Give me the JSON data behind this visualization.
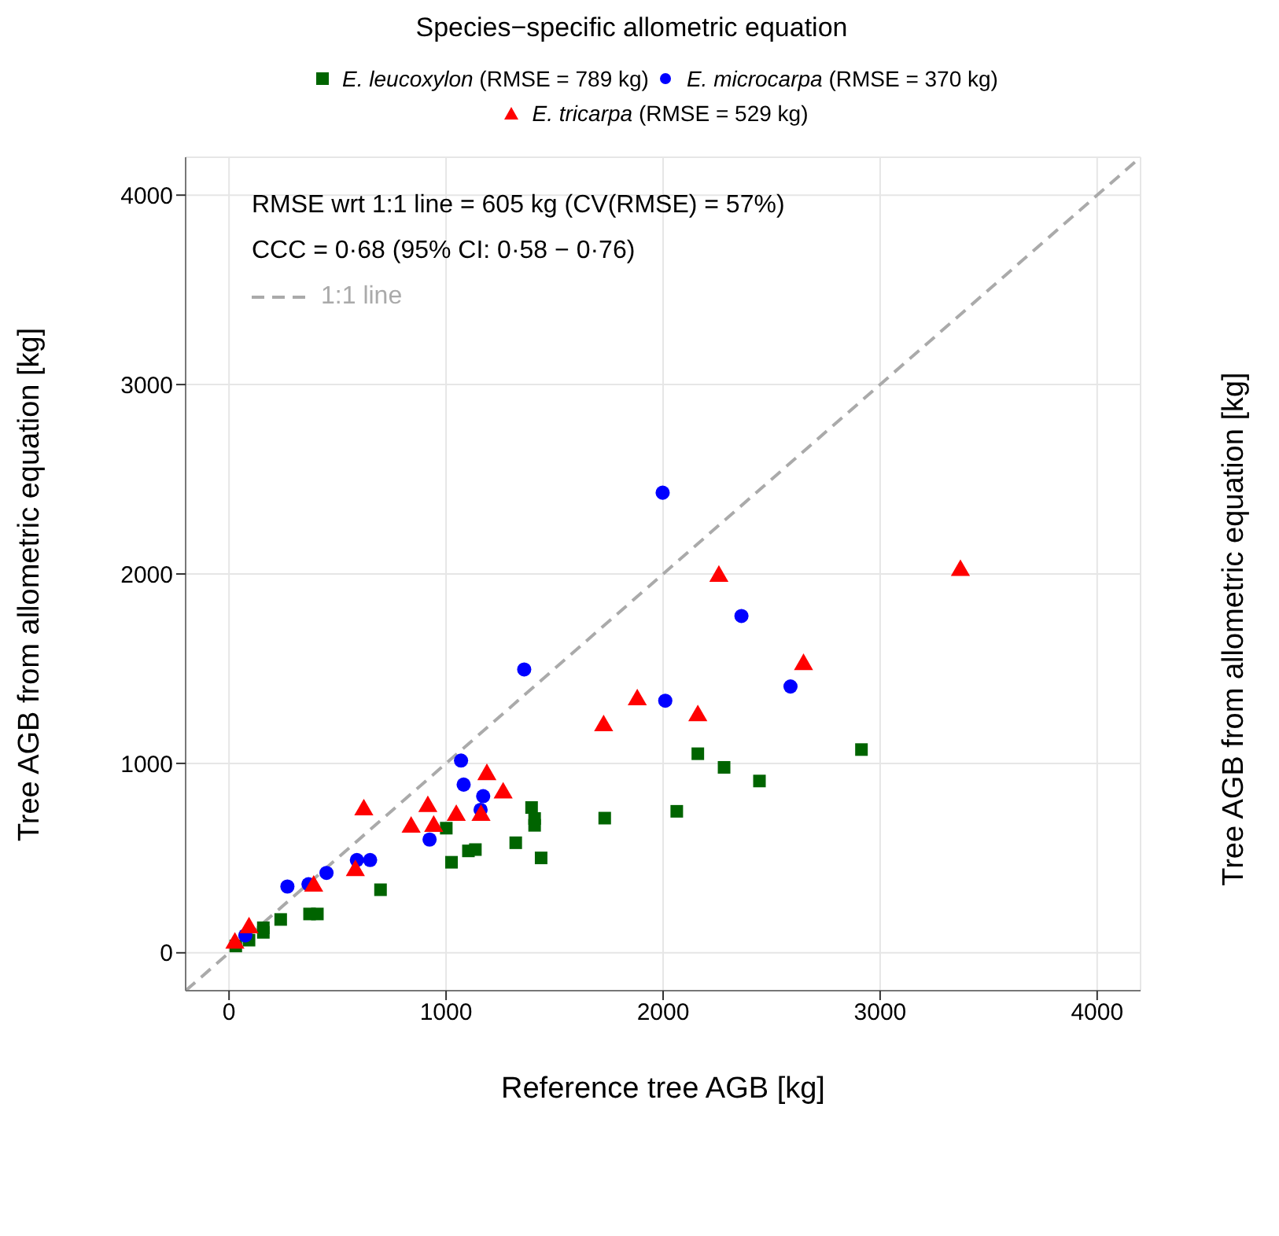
{
  "chart_data": {
    "type": "scatter",
    "title": "Species−specific allometric equation",
    "xlabel": "Reference tree AGB [kg]",
    "ylabel": "Tree AGB from allometric equation [kg]",
    "y2label": "Tree AGB from allometric equation [kg]",
    "annotations": [
      "RMSE wrt 1:1 line = 605 kg (CV(RMSE) = 57%)",
      "CCC = 0·68 (95% CI: 0·58 − 0·76)"
    ],
    "xlim": [
      -200,
      4200
    ],
    "ylim": [
      -200,
      4200
    ],
    "xticks": [
      0,
      1000,
      2000,
      3000,
      4000
    ],
    "yticks": [
      0,
      1000,
      2000,
      3000,
      4000
    ],
    "grid": true,
    "legend": "top",
    "series": [
      {
        "name": "E. leucoxylon (RMSE = 789 kg)",
        "marker": "square",
        "color": "#006400",
        "x": [
          31,
          92,
          158,
          158,
          238,
          371,
          407,
          698,
          1001,
          1025,
          1103,
          1135,
          1321,
          1394,
          1408,
          1408,
          1438,
          1731,
          2063,
          2160,
          2281,
          2444,
          2914
        ],
        "values": [
          36,
          67,
          132,
          108,
          176,
          205,
          205,
          333,
          658,
          478,
          538,
          545,
          581,
          767,
          709,
          673,
          501,
          711,
          747,
          1051,
          979,
          907,
          1073
        ]
      },
      {
        "name": "E. microcarpa (RMSE = 370 kg)",
        "marker": "circle",
        "color": "#0000ff",
        "x": [
          75,
          269,
          366,
          449,
          589,
          650,
          924,
          1069,
          1081,
          1159,
          1171,
          1360,
          1998,
          2010,
          2361,
          2587
        ],
        "values": [
          92,
          350,
          362,
          422,
          490,
          490,
          598,
          1015,
          888,
          755,
          827,
          1496,
          2429,
          1331,
          1778,
          1406
        ]
      },
      {
        "name": "E. tricarpa (RMSE = 529 kg)",
        "marker": "triangle",
        "color": "#ff0000",
        "x": [
          27,
          92,
          390,
          582,
          621,
          839,
          916,
          943,
          1047,
          1161,
          1188,
          1263,
          1726,
          1881,
          2160,
          2257,
          2647,
          3370
        ],
        "values": [
          51,
          132,
          352,
          434,
          755,
          663,
          772,
          668,
          726,
          726,
          941,
          844,
          1199,
          1336,
          1252,
          1988,
          1522,
          2019
        ]
      },
      {
        "name": "1:1 line",
        "type": "line",
        "line_style": "dashed",
        "color": "#aaaaaa",
        "x": [
          -200,
          4200
        ],
        "values": [
          -200,
          4200
        ]
      }
    ]
  }
}
